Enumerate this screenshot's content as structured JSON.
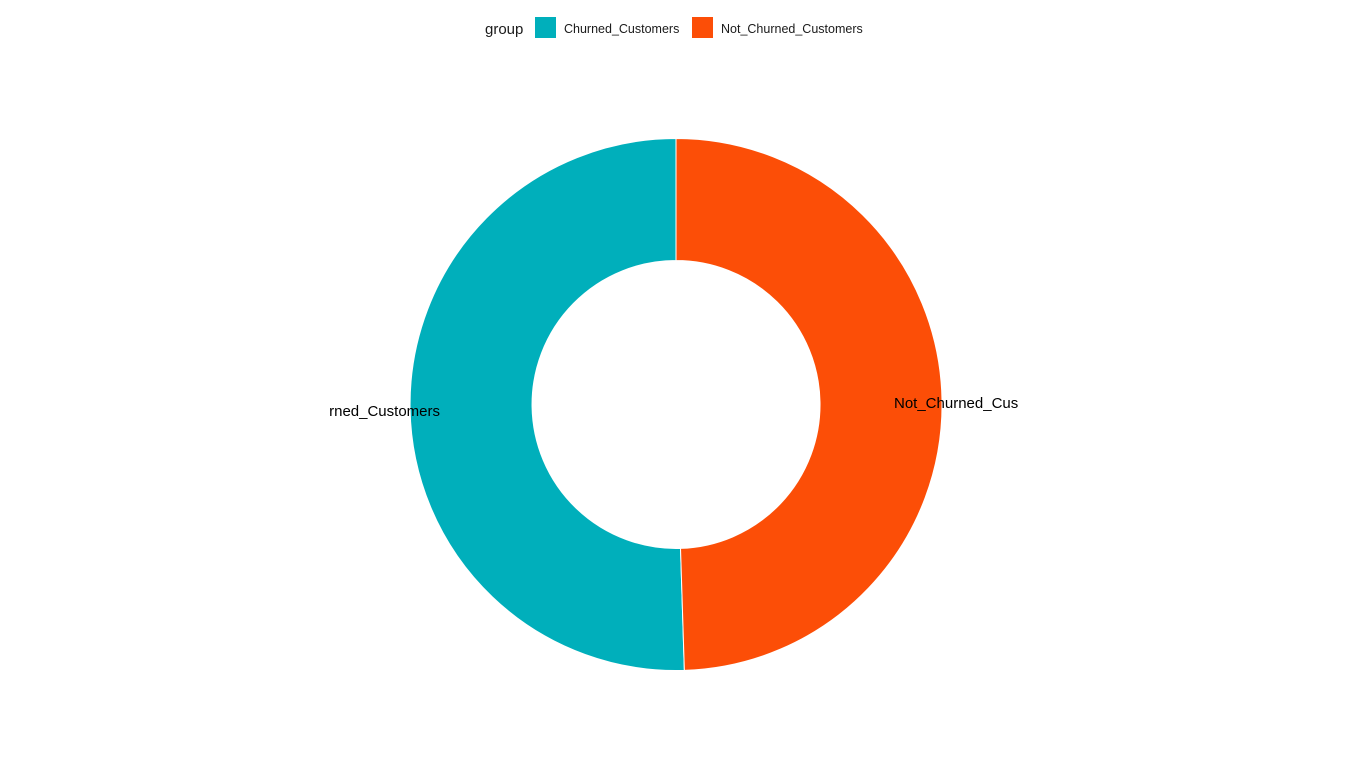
{
  "chart_data": {
    "type": "pie",
    "variant": "donut",
    "legend": {
      "title": "group",
      "position": "top"
    },
    "categories": [
      "Churned_Customers",
      "Not_Churned_Customers"
    ],
    "values": [
      50.5,
      49.5
    ],
    "slice_labels": [
      "Churned_Customers",
      "Not_Churned_Customers"
    ],
    "colors": [
      "#00AFBB",
      "#FC4E07"
    ],
    "start": "top",
    "direction": "counterclockwise"
  }
}
